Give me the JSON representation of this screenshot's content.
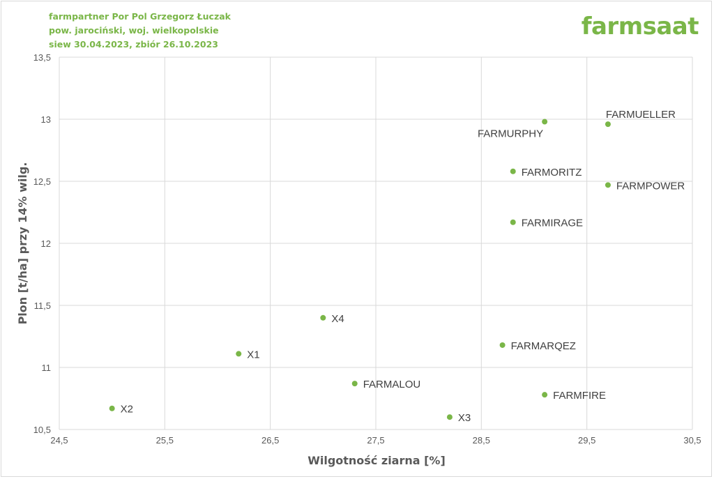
{
  "header": {
    "line1": "farmpartner Por Pol Grzegorz Łuczak",
    "line2": "pow. jarociński, woj. wielkopolskie",
    "line3": "siew 30.04.2023, zbiór 26.10.2023"
  },
  "logo": {
    "text": "farmsaat"
  },
  "colors": {
    "accent": "#7ab648",
    "grid": "#d9d9d9",
    "text": "#595959"
  },
  "chart_data": {
    "type": "scatter",
    "xlabel": "Wilgotność ziarna [%]",
    "ylabel": "Plon [t/ha] przy 14% wilg.",
    "xlim": [
      24.5,
      30.5
    ],
    "ylim": [
      10.5,
      13.5
    ],
    "xticks": [
      24.5,
      25.5,
      26.5,
      27.5,
      28.5,
      29.5,
      30.5
    ],
    "xtick_labels": [
      "24,5",
      "25,5",
      "26,5",
      "27,5",
      "28,5",
      "29,5",
      "30,5"
    ],
    "yticks": [
      10.5,
      11,
      11.5,
      12,
      12.5,
      13,
      13.5
    ],
    "ytick_labels": [
      "10,5",
      "11",
      "11,5",
      "12",
      "12,5",
      "13",
      "13,5"
    ],
    "grid": true,
    "points": [
      {
        "label": "FARMUELLER",
        "x": 29.7,
        "y": 12.96,
        "label_pos": "above"
      },
      {
        "label": "FARMURPHY",
        "x": 29.1,
        "y": 12.98,
        "label_pos": "below-left"
      },
      {
        "label": "FARMORITZ",
        "x": 28.8,
        "y": 12.58,
        "label_pos": "right"
      },
      {
        "label": "FARMPOWER",
        "x": 29.7,
        "y": 12.47,
        "label_pos": "right"
      },
      {
        "label": "FARMIRAGE",
        "x": 28.8,
        "y": 12.17,
        "label_pos": "right"
      },
      {
        "label": "X4",
        "x": 27.0,
        "y": 11.4,
        "label_pos": "right"
      },
      {
        "label": "FARMARQEZ",
        "x": 28.7,
        "y": 11.18,
        "label_pos": "right"
      },
      {
        "label": "X1",
        "x": 26.2,
        "y": 11.11,
        "label_pos": "right"
      },
      {
        "label": "FARMALOU",
        "x": 27.3,
        "y": 10.87,
        "label_pos": "right"
      },
      {
        "label": "FARMFIRE",
        "x": 29.1,
        "y": 10.78,
        "label_pos": "right"
      },
      {
        "label": "X2",
        "x": 25.0,
        "y": 10.67,
        "label_pos": "right"
      },
      {
        "label": "X3",
        "x": 28.2,
        "y": 10.6,
        "label_pos": "right"
      }
    ]
  }
}
